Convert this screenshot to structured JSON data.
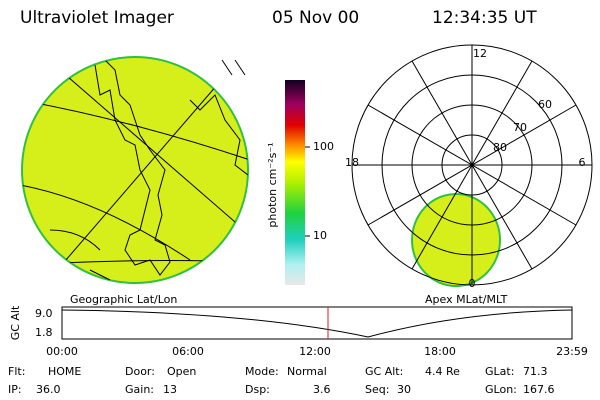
{
  "header": {
    "instrument": "Ultraviolet Imager",
    "date": "05 Nov 00",
    "time": "12:34:35 UT"
  },
  "left_panel": {
    "caption": "Geographic Lat/Lon"
  },
  "colorbar": {
    "label": "photon cm⁻²s⁻¹",
    "ticks": [
      "100",
      "10"
    ]
  },
  "right_panel": {
    "caption": "Apex MLat/MLT",
    "mlt_labels": [
      "12",
      "18",
      "6",
      "0"
    ],
    "lat_labels": [
      "60",
      "70",
      "80"
    ]
  },
  "altitude_strip": {
    "label": "GC Alt",
    "y_labels": [
      "9.0",
      "1.8"
    ],
    "time_labels": [
      "00:00",
      "06:00",
      "12:00",
      "18:00",
      "23:59"
    ]
  },
  "info": [
    [
      {
        "label": "Flt:",
        "value": "HOME"
      },
      {
        "label": "Door:",
        "value": "Open"
      },
      {
        "label": "Mode:",
        "value": "Normal"
      },
      {
        "label": "GC Alt:",
        "value": "4.4 Re"
      },
      {
        "label": "GLat:",
        "value": "71.3"
      }
    ],
    [
      {
        "label": "IP:",
        "value": "36.0"
      },
      {
        "label": "Gain:",
        "value": "13"
      },
      {
        "label": "Dsp:",
        "value": "3.6"
      },
      {
        "label": "Seq:",
        "value": "30"
      },
      {
        "label": "GLon:",
        "value": "167.6"
      }
    ]
  ]
}
